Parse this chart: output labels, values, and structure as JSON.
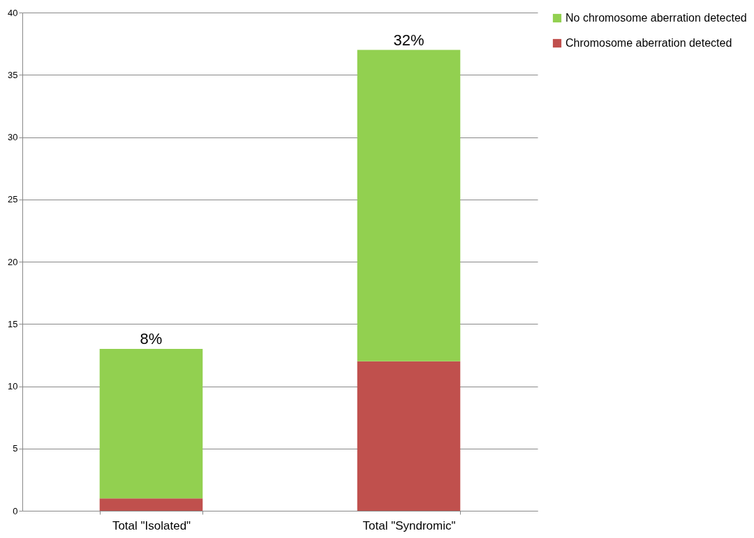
{
  "chart_data": {
    "type": "bar",
    "stacked": true,
    "categories": [
      "Total \"Isolated\"",
      "Total \"Syndromic\""
    ],
    "series": [
      {
        "name": "Chromosome aberration detected",
        "color": "#c0504d",
        "values": [
          1,
          12
        ]
      },
      {
        "name": "No chromosome aberration detected",
        "color": "#92d050",
        "values": [
          12,
          25
        ]
      }
    ],
    "ylim": [
      0,
      40
    ],
    "yticks": [
      0,
      5,
      10,
      15,
      20,
      25,
      30,
      35,
      40
    ],
    "grid": "y",
    "legend": "right",
    "annotations": [
      {
        "text": "8%",
        "x": "Total \"Isolated\"",
        "y": 13
      },
      {
        "text": "32%",
        "x": "Total \"Syndromic\"",
        "y": 37
      }
    ]
  }
}
